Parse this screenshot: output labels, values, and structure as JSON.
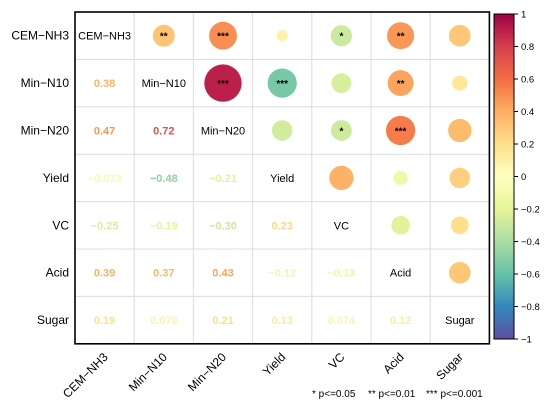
{
  "chart_data": {
    "type": "heatmap",
    "variables": [
      "CEM−NH3",
      "Min−N10",
      "Min−N20",
      "Yield",
      "VC",
      "Acid",
      "Sugar"
    ],
    "correlations": [
      [
        1,
        0.31,
        0.5,
        0.08,
        -0.29,
        0.47,
        0.3
      ],
      [
        0.38,
        1,
        0.9,
        -0.55,
        -0.25,
        0.43,
        0.15
      ],
      [
        0.47,
        0.72,
        1,
        -0.27,
        -0.28,
        0.55,
        0.35
      ],
      [
        -0.073,
        -0.48,
        -0.21,
        1,
        0.38,
        -0.13,
        0.27
      ],
      [
        -0.25,
        -0.19,
        -0.3,
        0.23,
        1,
        -0.22,
        0.2
      ],
      [
        0.39,
        0.37,
        0.43,
        -0.12,
        -0.13,
        1,
        0.3
      ],
      [
        0.19,
        0.078,
        0.21,
        0.13,
        0.074,
        0.12,
        1
      ]
    ],
    "lower_labels": [
      [
        null,
        null,
        null,
        null,
        null,
        null,
        null
      ],
      [
        "0.38",
        null,
        null,
        null,
        null,
        null,
        null
      ],
      [
        "0.47",
        "0.72",
        null,
        null,
        null,
        null,
        null
      ],
      [
        "−0.073",
        "−0.48",
        "−0.21",
        null,
        null,
        null,
        null
      ],
      [
        "−0.25",
        "−0.19",
        "−0.30",
        "0.23",
        null,
        null,
        null
      ],
      [
        "0.39",
        "0.37",
        "0.43",
        "−0.12",
        "−0.13",
        null,
        null
      ],
      [
        "0.19",
        "0.078",
        "0.21",
        "0.13",
        "0.074",
        "0.12",
        null
      ]
    ],
    "significance": [
      [
        "",
        "**",
        "***",
        "",
        "*",
        "**",
        ""
      ],
      [
        "",
        "",
        "***",
        "***",
        "",
        "**",
        ""
      ],
      [
        "",
        "",
        "",
        "",
        "*",
        "***",
        ""
      ],
      [
        "",
        "",
        "",
        "",
        "",
        "",
        ""
      ],
      [
        "",
        "",
        "",
        "",
        "",
        "",
        ""
      ],
      [
        "",
        "",
        "",
        "",
        "",
        "",
        ""
      ],
      [
        "",
        "",
        "",
        "",
        "",
        "",
        ""
      ]
    ],
    "colorbar": {
      "range": [
        -1,
        1
      ],
      "ticks": [
        "1",
        "0.8",
        "0.6",
        "0.4",
        "0.2",
        "0",
        "−0.2",
        "−0.4",
        "−0.6",
        "−0.8",
        "−1"
      ],
      "ramp": [
        "#5E4FA2",
        "#3288BD",
        "#66C2A5",
        "#ABDDA4",
        "#E6F598",
        "#FFFFBF",
        "#FEE08B",
        "#FDAE61",
        "#F46D43",
        "#D53E4F",
        "#9E0142"
      ]
    },
    "legend_note": [
      "* p<=0.05",
      "** p<=0.01",
      "*** p<=0.001"
    ]
  }
}
